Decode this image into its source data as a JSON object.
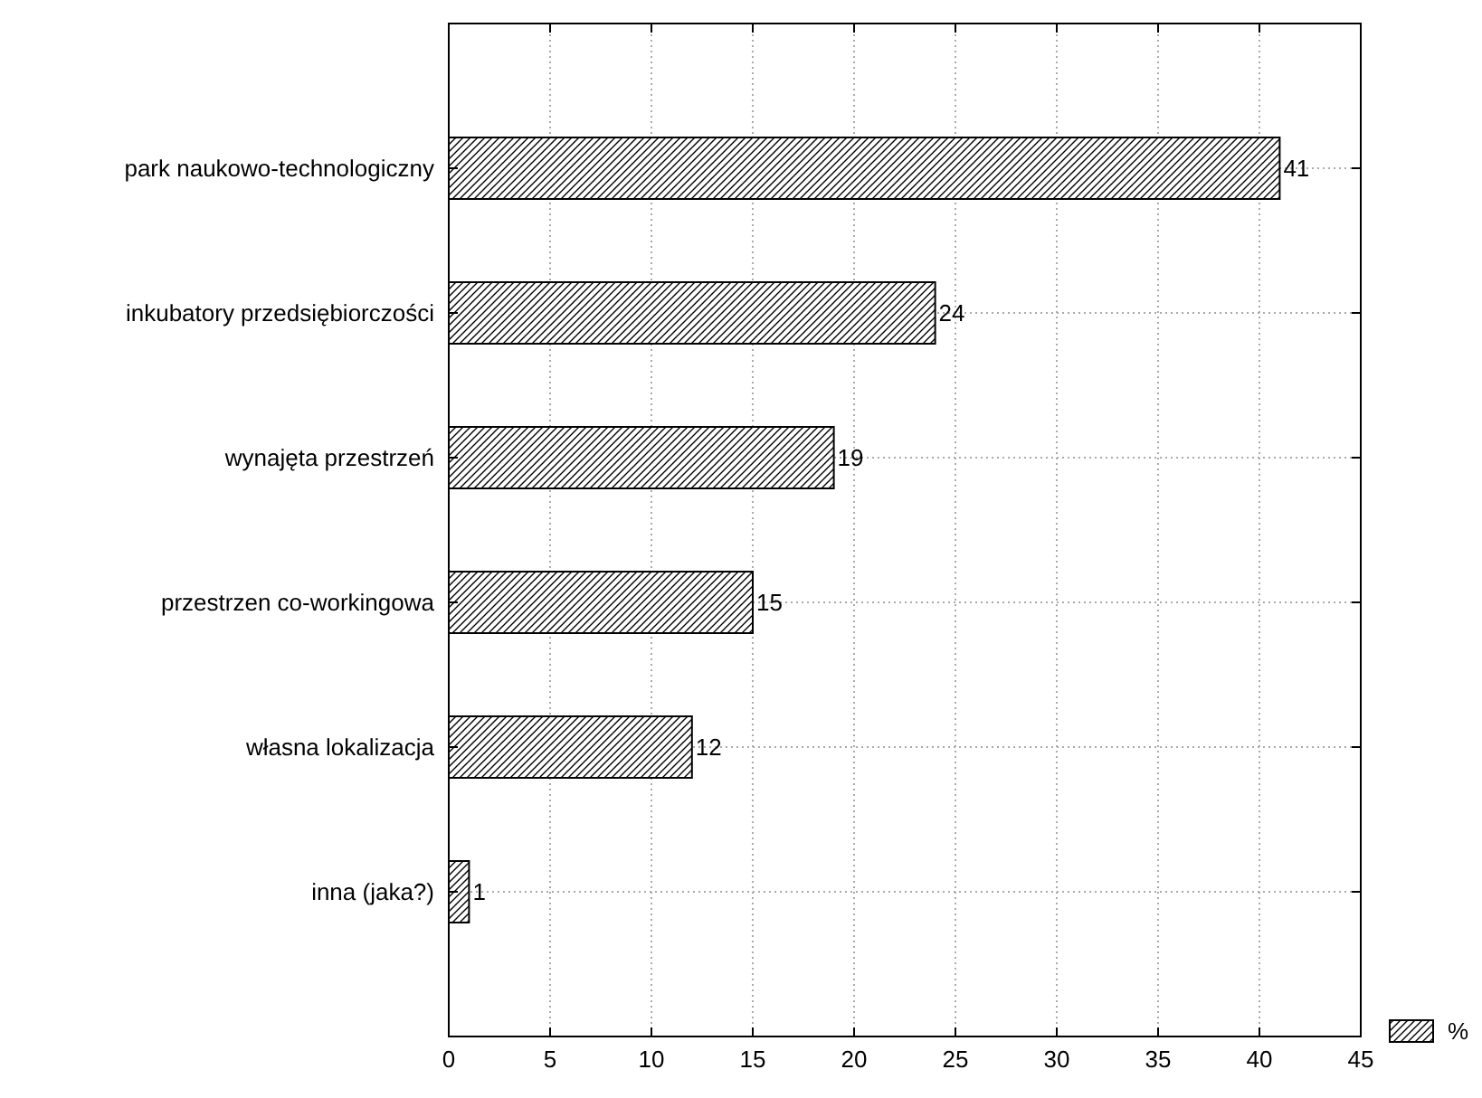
{
  "chart_data": {
    "type": "bar",
    "orientation": "horizontal",
    "categories": [
      "park naukowo-technologiczny",
      "inkubatory przedsiębiorczości",
      "wynajęta przestrzeń",
      "przestrzen co-workingowa",
      "własna lokalizacja",
      "inna (jaka?)"
    ],
    "series": [
      {
        "name": "%",
        "color": "#000000",
        "values": [
          41,
          24,
          19,
          15,
          12,
          1
        ]
      }
    ],
    "xlim": [
      0,
      45
    ],
    "xticks": [
      0,
      5,
      10,
      15,
      20,
      25,
      30,
      35,
      40,
      45
    ],
    "grid": true,
    "data_labels": true,
    "legend": "bottom right"
  }
}
